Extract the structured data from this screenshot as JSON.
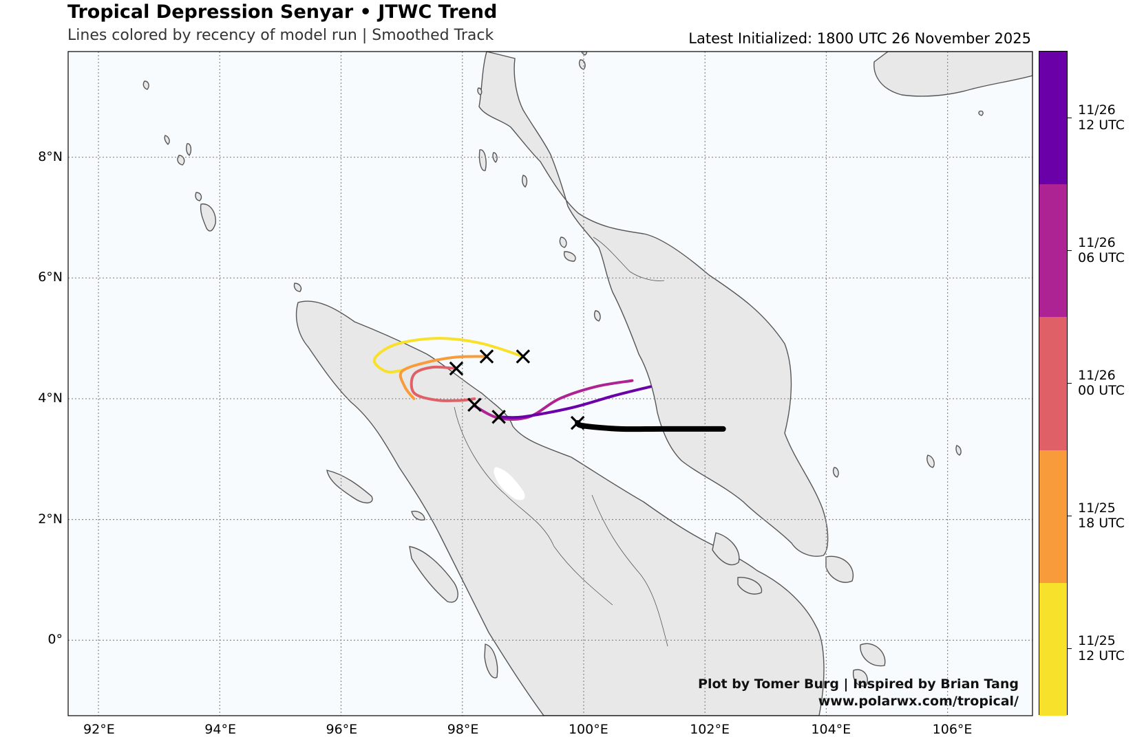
{
  "header": {
    "title": "Tropical Depression Senyar • JTWC Trend",
    "subtitle": "Lines colored by recency of model run | Smoothed Track",
    "initialized": "Latest Initialized: 1800 UTC 26 November 2025"
  },
  "credits": {
    "line1": "Plot by Tomer Burg | Inspired by Brian Tang",
    "line2": "www.polarwx.com/tropical/"
  },
  "axes": {
    "lon_labels": [
      "92°E",
      "94°E",
      "96°E",
      "98°E",
      "100°E",
      "102°E",
      "104°E",
      "106°E"
    ],
    "lat_labels": [
      "8°N",
      "6°N",
      "4°N",
      "2°N",
      "0°"
    ]
  },
  "colorbar": {
    "segments": [
      {
        "color": "#f7e12b"
      },
      {
        "color": "#f89c3b"
      },
      {
        "color": "#df6066"
      },
      {
        "color": "#ae2393"
      },
      {
        "color": "#6a00a8"
      }
    ],
    "labels": [
      {
        "line1": "11/25",
        "line2": "12 UTC"
      },
      {
        "line1": "11/25",
        "line2": "18 UTC"
      },
      {
        "line1": "11/26",
        "line2": "00 UTC"
      },
      {
        "line1": "11/26",
        "line2": "06 UTC"
      },
      {
        "line1": "11/26",
        "line2": "12 UTC"
      }
    ]
  },
  "colors": {
    "ocean": "#f7fbfd",
    "land": "#e8e8e8",
    "coast": "#555555",
    "grid": "#888888",
    "latest_track": "#000000"
  },
  "chart_data": {
    "type": "map",
    "extent": {
      "lon": [
        91.5,
        107.4
      ],
      "lat": [
        -1.25,
        9.75
      ]
    },
    "grid": true,
    "tracks": [
      {
        "run": "11/25 12 UTC",
        "color": "#f7e12b",
        "points": [
          [
            99.0,
            4.7
          ],
          [
            98.3,
            4.92
          ],
          [
            97.6,
            5.0
          ],
          [
            96.9,
            4.9
          ],
          [
            96.55,
            4.65
          ],
          [
            96.75,
            4.45
          ],
          [
            97.05,
            4.48
          ]
        ]
      },
      {
        "run": "11/25 18 UTC",
        "color": "#f89c3b",
        "points": [
          [
            98.4,
            4.7
          ],
          [
            97.9,
            4.69
          ],
          [
            97.4,
            4.6
          ],
          [
            97.0,
            4.45
          ],
          [
            97.05,
            4.2
          ],
          [
            97.2,
            4.0
          ]
        ]
      },
      {
        "run": "11/26 00 UTC",
        "color": "#df6066",
        "points": [
          [
            97.9,
            4.5
          ],
          [
            97.5,
            4.52
          ],
          [
            97.2,
            4.4
          ],
          [
            97.2,
            4.1
          ],
          [
            97.55,
            3.98
          ],
          [
            97.95,
            3.97
          ],
          [
            98.2,
            4.0
          ]
        ]
      },
      {
        "run": "11/26 06 UTC",
        "color": "#ae2393",
        "points": [
          [
            100.8,
            4.3
          ],
          [
            100.2,
            4.2
          ],
          [
            99.6,
            4.0
          ],
          [
            99.1,
            3.7
          ],
          [
            98.6,
            3.68
          ],
          [
            98.2,
            3.88
          ]
        ]
      },
      {
        "run": "11/26 12 UTC",
        "color": "#6a00a8",
        "points": [
          [
            101.1,
            4.2
          ],
          [
            100.5,
            4.05
          ],
          [
            99.8,
            3.85
          ],
          [
            99.0,
            3.7
          ],
          [
            98.6,
            3.7
          ]
        ]
      },
      {
        "run": "Latest 1800 UTC 26 November 2025",
        "color": "#000000",
        "points": [
          [
            102.3,
            3.5
          ],
          [
            101.3,
            3.5
          ],
          [
            100.6,
            3.5
          ],
          [
            100.0,
            3.55
          ],
          [
            99.9,
            3.6
          ]
        ]
      }
    ],
    "markers": [
      {
        "lon": 99.0,
        "lat": 4.7
      },
      {
        "lon": 98.4,
        "lat": 4.7
      },
      {
        "lon": 97.9,
        "lat": 4.5
      },
      {
        "lon": 98.2,
        "lat": 3.9
      },
      {
        "lon": 98.6,
        "lat": 3.7
      },
      {
        "lon": 99.9,
        "lat": 3.6
      }
    ],
    "colorbar_label_runs": [
      "11/25 12 UTC",
      "11/25 18 UTC",
      "11/26 00 UTC",
      "11/26 06 UTC",
      "11/26 12 UTC"
    ]
  }
}
